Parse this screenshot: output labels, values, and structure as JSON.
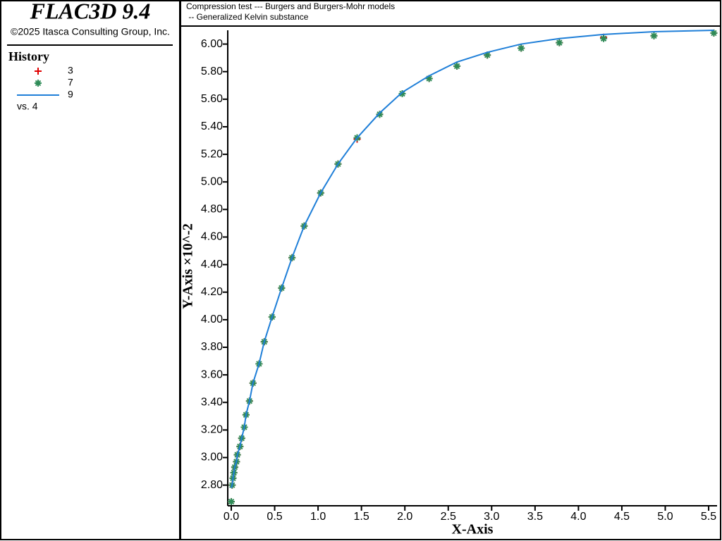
{
  "app": {
    "title": "FLAC3D 9.4",
    "copyright": "©2025 Itasca Consulting Group, Inc."
  },
  "legend": {
    "title": "History",
    "footer": "vs. 4"
  },
  "chart_data": {
    "type": "line",
    "title": "Compression test --- Burgers and Burgers-Mohr models",
    "subtitle": " -- Generalized Kelvin substance",
    "x_label": "X-Axis",
    "y_label": "Y-Axis ×10^-2",
    "x": [
      0.0,
      0.01,
      0.02,
      0.03,
      0.04,
      0.06,
      0.07,
      0.1,
      0.12,
      0.15,
      0.17,
      0.21,
      0.25,
      0.32,
      0.38,
      0.47,
      0.58,
      0.7,
      0.84,
      1.03,
      1.23,
      1.45,
      1.71,
      1.97,
      2.28,
      2.6,
      2.95,
      3.34,
      3.78,
      4.29,
      4.87,
      5.56
    ],
    "series": [
      {
        "name": "3",
        "color": "#e00000",
        "marker": "plus",
        "values": [
          2.68,
          2.8,
          2.85,
          2.89,
          2.93,
          2.97,
          3.02,
          3.08,
          3.14,
          3.22,
          3.31,
          3.41,
          3.54,
          3.68,
          3.84,
          4.02,
          4.23,
          4.45,
          4.68,
          4.92,
          5.13,
          5.31,
          5.49,
          5.64,
          5.75,
          5.84,
          5.92,
          5.97,
          6.01,
          6.05,
          6.06,
          6.08
        ]
      },
      {
        "name": "7",
        "color": "#2e8b57",
        "marker": "star",
        "values": [
          2.68,
          2.8,
          2.85,
          2.89,
          2.93,
          2.97,
          3.02,
          3.08,
          3.14,
          3.22,
          3.31,
          3.41,
          3.54,
          3.68,
          3.84,
          4.02,
          4.23,
          4.45,
          4.68,
          4.92,
          5.13,
          5.32,
          5.49,
          5.64,
          5.75,
          5.84,
          5.92,
          5.97,
          6.01,
          6.04,
          6.06,
          6.08
        ]
      },
      {
        "name": "9",
        "color": "#1f7fd8",
        "marker": "line",
        "values": [
          2.78,
          2.8,
          2.85,
          2.89,
          2.93,
          2.97,
          3.02,
          3.08,
          3.14,
          3.22,
          3.31,
          3.41,
          3.54,
          3.68,
          3.84,
          4.02,
          4.23,
          4.45,
          4.68,
          4.92,
          5.13,
          5.32,
          5.5,
          5.65,
          5.77,
          5.87,
          5.94,
          6.0,
          6.04,
          6.07,
          6.09,
          6.1
        ]
      }
    ],
    "xlim": [
      0,
      5.6
    ],
    "xticks": [
      {
        "value": 0,
        "label": "0.0"
      },
      0.5,
      {
        "value": 1,
        "label": "1.0"
      },
      1.5,
      {
        "value": 2,
        "label": "2.0"
      },
      2.5,
      {
        "value": 3,
        "label": "3.0"
      },
      3.5,
      {
        "value": 4,
        "label": "4.0"
      },
      4.5,
      {
        "value": 5,
        "label": "5.0"
      },
      5.5
    ],
    "ylim": [
      2.65,
      6.1
    ],
    "yticks": [
      {
        "value": 2.8,
        "label": "2.80"
      },
      {
        "value": 3,
        "label": "3.00"
      },
      {
        "value": 3.2,
        "label": "3.20"
      },
      {
        "value": 3.4,
        "label": "3.40"
      },
      {
        "value": 3.6,
        "label": "3.60"
      },
      {
        "value": 3.8,
        "label": "3.80"
      },
      {
        "value": 4,
        "label": "4.00"
      },
      {
        "value": 4.2,
        "label": "4.20"
      },
      {
        "value": 4.4,
        "label": "4.40"
      },
      {
        "value": 4.6,
        "label": "4.60"
      },
      {
        "value": 4.8,
        "label": "4.80"
      },
      {
        "value": 5,
        "label": "5.00"
      },
      {
        "value": 5.2,
        "label": "5.20"
      },
      {
        "value": 5.4,
        "label": "5.40"
      },
      {
        "value": 5.6,
        "label": "5.60"
      },
      {
        "value": 5.8,
        "label": "5.80"
      },
      {
        "value": 6,
        "label": "6.00"
      }
    ],
    "grid": false
  }
}
